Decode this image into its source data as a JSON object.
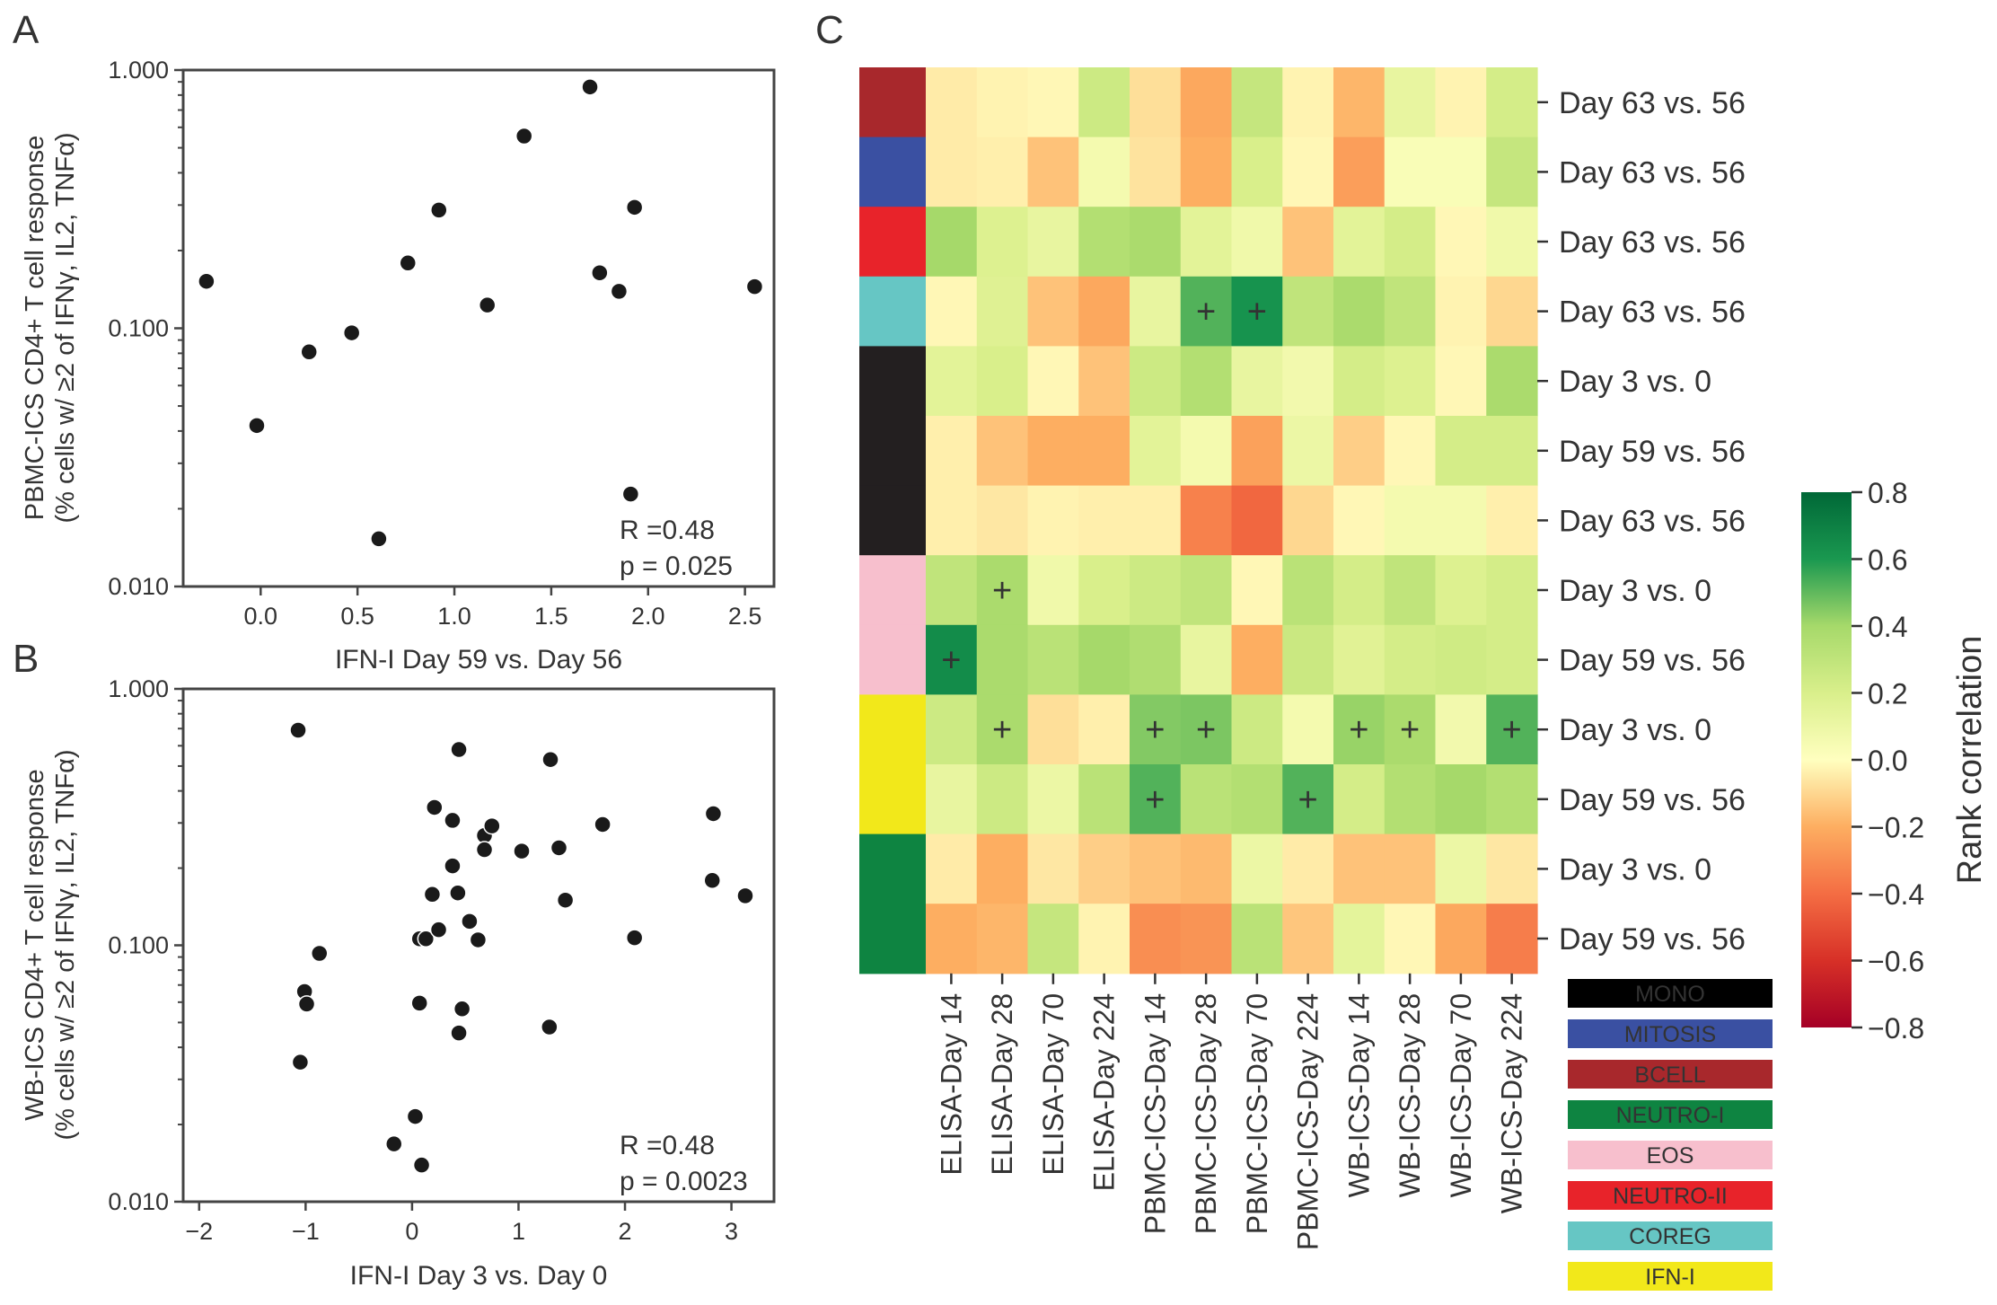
{
  "panels": {
    "a": "A",
    "b": "B",
    "c": "C"
  },
  "chart_data": [
    {
      "type": "scatter",
      "panel": "A",
      "xlabel": "IFN-I Day 59 vs. Day 56",
      "ylabel_line1": "PBMC-ICS CD4+ T cell response",
      "ylabel_line2": "(% cells w/ ≥2 of IFNγ, IL2, TNFα)",
      "yscale": "log",
      "xlim": [
        -0.4,
        2.65
      ],
      "ylim": [
        0.01,
        1.0
      ],
      "xticks": [
        0.0,
        0.5,
        1.0,
        1.5,
        2.0,
        2.5
      ],
      "xticklabels": [
        "0.0",
        "0.5",
        "1.0",
        "1.5",
        "2.0",
        "2.5"
      ],
      "yticks": [
        0.01,
        0.1,
        1.0
      ],
      "yticklabels": [
        "0.010",
        "0.100",
        "1.000"
      ],
      "annotation_r": "R =0.48",
      "annotation_p": "p = 0.025",
      "points": [
        [
          -0.28,
          0.152
        ],
        [
          -0.02,
          0.042
        ],
        [
          0.25,
          0.081
        ],
        [
          0.47,
          0.096
        ],
        [
          0.61,
          0.0153
        ],
        [
          0.76,
          0.179
        ],
        [
          0.92,
          0.287
        ],
        [
          1.17,
          0.123
        ],
        [
          1.36,
          0.555
        ],
        [
          1.7,
          0.86
        ],
        [
          1.75,
          0.164
        ],
        [
          1.85,
          0.139
        ],
        [
          1.91,
          0.0228
        ],
        [
          1.93,
          0.294
        ],
        [
          2.55,
          0.145
        ]
      ]
    },
    {
      "type": "scatter",
      "panel": "B",
      "xlabel": "IFN-I Day 3 vs. Day 0",
      "ylabel_line1": "WB-ICS CD4+ T cell response",
      "ylabel_line2": "(% cells w/ ≥2 of IFNγ, IL2, TNFα)",
      "yscale": "log",
      "xlim": [
        -2.15,
        3.4
      ],
      "ylim": [
        0.01,
        1.0
      ],
      "xticks": [
        -2,
        -1,
        0,
        1,
        2,
        3
      ],
      "xticklabels": [
        "−2",
        "−1",
        "0",
        "1",
        "2",
        "3"
      ],
      "yticks": [
        0.01,
        0.1,
        1.0
      ],
      "yticklabels": [
        "0.010",
        "0.100",
        "1.000"
      ],
      "annotation_r": "R =0.48",
      "annotation_p": "p = 0.0023",
      "points": [
        [
          -1.07,
          0.69
        ],
        [
          -1.05,
          0.035
        ],
        [
          -1.01,
          0.066
        ],
        [
          -0.99,
          0.059
        ],
        [
          -0.87,
          0.093
        ],
        [
          -0.17,
          0.0168
        ],
        [
          0.03,
          0.0215
        ],
        [
          0.07,
          0.106
        ],
        [
          0.07,
          0.0595
        ],
        [
          0.09,
          0.0139
        ],
        [
          0.13,
          0.106
        ],
        [
          0.19,
          0.158
        ],
        [
          0.21,
          0.345
        ],
        [
          0.25,
          0.115
        ],
        [
          0.38,
          0.307
        ],
        [
          0.38,
          0.204
        ],
        [
          0.43,
          0.16
        ],
        [
          0.44,
          0.0455
        ],
        [
          0.44,
          0.58
        ],
        [
          0.47,
          0.0565
        ],
        [
          0.54,
          0.124
        ],
        [
          0.62,
          0.105
        ],
        [
          0.68,
          0.268
        ],
        [
          0.68,
          0.236
        ],
        [
          0.75,
          0.292
        ],
        [
          1.03,
          0.233
        ],
        [
          1.29,
          0.048
        ],
        [
          1.3,
          0.53
        ],
        [
          1.38,
          0.24
        ],
        [
          1.44,
          0.15
        ],
        [
          1.79,
          0.296
        ],
        [
          2.09,
          0.107
        ],
        [
          2.82,
          0.179
        ],
        [
          2.83,
          0.326
        ],
        [
          3.13,
          0.156
        ]
      ]
    },
    {
      "type": "heatmap",
      "panel": "C",
      "columns": [
        "ELISA-Day 14",
        "ELISA-Day 28",
        "ELISA-Day 70",
        "ELISA-Day 224",
        "PBMC-ICS-Day 14",
        "PBMC-ICS-Day 28",
        "PBMC-ICS-Day 70",
        "PBMC-ICS-Day 224",
        "WB-ICS-Day 14",
        "WB-ICS-Day 28",
        "WB-ICS-Day 70",
        "WB-ICS-Day 224"
      ],
      "rows": [
        "Day 63 vs. 56",
        "Day 63 vs. 56",
        "Day 63 vs. 56",
        "Day 63 vs. 56",
        "Day 3 vs. 0",
        "Day 59 vs. 56",
        "Day 63 vs. 56",
        "Day 3 vs. 0",
        "Day 59 vs. 56",
        "Day 3 vs. 0",
        "Day 59 vs. 56",
        "Day 3 vs. 0",
        "Day 59 vs. 56"
      ],
      "row_modules": [
        "BCELL",
        "MITOSIS",
        "NEUTRO-II",
        "COREG",
        "MONO",
        "MONO",
        "MONO",
        "EOS",
        "EOS",
        "IFN-I",
        "IFN-I",
        "NEUTRO-I",
        "NEUTRO-I"
      ],
      "values": [
        [
          -0.05,
          -0.03,
          -0.02,
          0.25,
          -0.08,
          -0.22,
          0.28,
          -0.03,
          -0.18,
          0.12,
          -0.03,
          0.22
        ],
        [
          -0.05,
          -0.04,
          -0.15,
          0.06,
          -0.07,
          -0.2,
          0.2,
          -0.02,
          -0.25,
          0.03,
          0.03,
          0.28
        ],
        [
          0.4,
          0.18,
          0.12,
          0.35,
          0.38,
          0.15,
          0.08,
          -0.15,
          0.15,
          0.22,
          -0.02,
          0.08
        ],
        [
          -0.02,
          0.17,
          -0.15,
          -0.22,
          0.12,
          0.52,
          0.62,
          0.3,
          0.38,
          0.3,
          -0.03,
          -0.1
        ],
        [
          0.15,
          0.2,
          -0.02,
          -0.15,
          0.25,
          0.35,
          0.12,
          0.07,
          0.22,
          0.18,
          -0.02,
          0.38
        ],
        [
          -0.04,
          -0.15,
          -0.2,
          -0.2,
          0.15,
          0.06,
          -0.24,
          0.1,
          -0.12,
          -0.02,
          0.22,
          0.22
        ],
        [
          -0.04,
          -0.06,
          -0.03,
          -0.04,
          -0.04,
          -0.34,
          -0.42,
          -0.1,
          -0.02,
          0.06,
          0.06,
          -0.04
        ],
        [
          0.3,
          0.38,
          0.08,
          0.2,
          0.25,
          0.3,
          -0.02,
          0.32,
          0.22,
          0.3,
          0.18,
          0.22
        ],
        [
          0.65,
          0.38,
          0.32,
          0.4,
          0.36,
          0.12,
          -0.2,
          0.26,
          0.16,
          0.22,
          0.24,
          0.22
        ],
        [
          0.25,
          0.38,
          -0.08,
          -0.04,
          0.45,
          0.46,
          0.25,
          0.06,
          0.42,
          0.38,
          0.07,
          0.52
        ],
        [
          0.12,
          0.25,
          0.1,
          0.32,
          0.52,
          0.32,
          0.35,
          0.52,
          0.22,
          0.35,
          0.4,
          0.35
        ],
        [
          -0.05,
          -0.2,
          -0.06,
          -0.12,
          -0.15,
          -0.17,
          0.1,
          -0.05,
          -0.15,
          -0.15,
          0.1,
          -0.06
        ],
        [
          -0.2,
          -0.18,
          0.28,
          -0.03,
          -0.3,
          -0.28,
          0.32,
          -0.14,
          0.14,
          -0.02,
          -0.22,
          -0.35
        ]
      ],
      "significant_markers": [
        [
          3,
          5
        ],
        [
          3,
          6
        ],
        [
          7,
          1
        ],
        [
          8,
          0
        ],
        [
          9,
          1
        ],
        [
          9,
          4
        ],
        [
          9,
          5
        ],
        [
          9,
          8
        ],
        [
          9,
          9
        ],
        [
          9,
          11
        ],
        [
          10,
          4
        ],
        [
          10,
          7
        ]
      ],
      "marker_symbol": "+",
      "colorbar_label": "Rank correlation",
      "colorbar_range": [
        -0.8,
        0.8
      ],
      "colorbar_ticks": [
        0.8,
        0.6,
        0.4,
        0.2,
        0.0,
        -0.2,
        -0.4,
        -0.6,
        -0.8
      ],
      "colorbar_ticklabels": [
        "0.8",
        "0.6",
        "0.4",
        "0.2",
        "0.0",
        "−0.2",
        "−0.4",
        "−0.6",
        "−0.8"
      ]
    }
  ],
  "module_colors": {
    "BCELL": "#a8282c",
    "MITOSIS": "#3a50a2",
    "NEUTRO-II": "#e8232a",
    "COREG": "#66c6c4",
    "MONO": "#231f20",
    "EOS": "#f7bfcd",
    "IFN-I": "#f2e81a",
    "NEUTRO-I": "#0e8441"
  },
  "legend": [
    {
      "label": "MONO",
      "color": "#000000",
      "text_color": "#ffffff"
    },
    {
      "label": "MITOSIS",
      "color": "#3a50a2",
      "text_color": "#ffffff"
    },
    {
      "label": "BCELL",
      "color": "#a8282c",
      "text_color": "#ffffff"
    },
    {
      "label": "NEUTRO-I",
      "color": "#0e8441",
      "text_color": "#ffffff"
    },
    {
      "label": "EOS",
      "color": "#f7bfcd",
      "text_color": "#333333"
    },
    {
      "label": "NEUTRO-II",
      "color": "#e8232a",
      "text_color": "#333333"
    },
    {
      "label": "COREG",
      "color": "#66c6c4",
      "text_color": "#333333"
    },
    {
      "label": "IFN-I",
      "color": "#f2e81a",
      "text_color": "#333333"
    }
  ]
}
